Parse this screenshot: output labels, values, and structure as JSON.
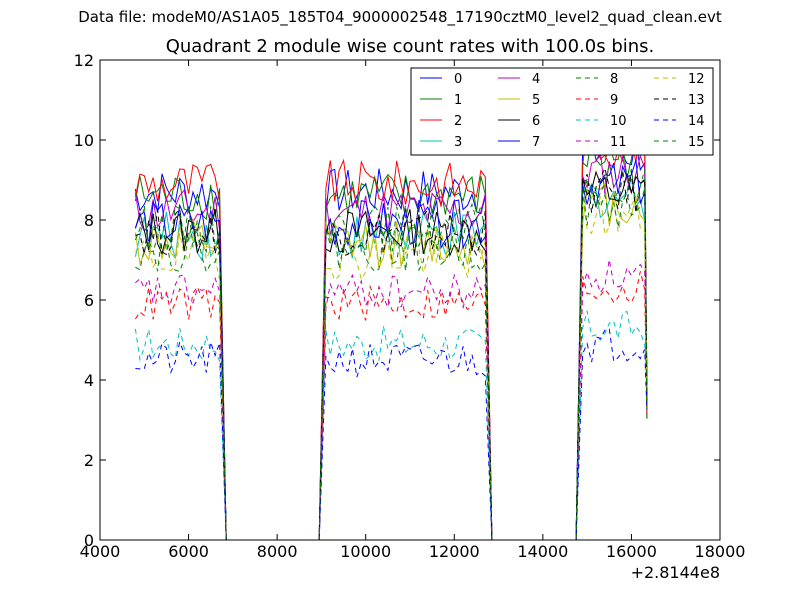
{
  "suptitle": "Data file: modeM0/AS1A05_185T04_9000002548_17190cztM0_level2_quad_clean.evt",
  "chart_data": {
    "type": "line",
    "title": "Quadrant 2 module wise count rates with 100.0s bins.",
    "xlabel": "",
    "ylabel": "",
    "x_offset_label": "+2.8144e8",
    "xlim": [
      4000,
      18000
    ],
    "ylim": [
      0,
      12
    ],
    "xticks": [
      "4000",
      "6000",
      "8000",
      "10000",
      "12000",
      "14000",
      "16000",
      "18000"
    ],
    "yticks": [
      "0",
      "2",
      "4",
      "6",
      "8",
      "10",
      "12"
    ],
    "legend_position": "top-right",
    "legend_columns": 4,
    "bin_seconds": 100,
    "segments": [
      [
        4800,
        6700
      ],
      [
        9100,
        12700
      ],
      [
        14900,
        16300
      ]
    ],
    "series": [
      {
        "name": "0",
        "color": "#0000ff",
        "dash": "solid",
        "level": 8.7
      },
      {
        "name": "1",
        "color": "#008000",
        "dash": "solid",
        "level": 8.6
      },
      {
        "name": "2",
        "color": "#ff0000",
        "dash": "solid",
        "level": 8.9
      },
      {
        "name": "3",
        "color": "#00bfbf",
        "dash": "solid",
        "level": 7.6
      },
      {
        "name": "4",
        "color": "#bf00bf",
        "dash": "solid",
        "level": 8.2
      },
      {
        "name": "5",
        "color": "#bfbf00",
        "dash": "solid",
        "level": 7.4
      },
      {
        "name": "6",
        "color": "#000000",
        "dash": "solid",
        "level": 7.7
      },
      {
        "name": "7",
        "color": "#0000ff",
        "dash": "solid",
        "level": 7.9
      },
      {
        "name": "8",
        "color": "#008000",
        "dash": "dashed",
        "level": 7.8
      },
      {
        "name": "9",
        "color": "#ff0000",
        "dash": "dashed",
        "level": 5.9
      },
      {
        "name": "10",
        "color": "#00bfbf",
        "dash": "dashed",
        "level": 4.9
      },
      {
        "name": "11",
        "color": "#bf00bf",
        "dash": "dashed",
        "level": 6.2
      },
      {
        "name": "12",
        "color": "#bfbf00",
        "dash": "dashed",
        "level": 7.1
      },
      {
        "name": "13",
        "color": "#000000",
        "dash": "dashed",
        "level": 7.7
      },
      {
        "name": "14",
        "color": "#0000ff",
        "dash": "dashed",
        "level": 4.5
      },
      {
        "name": "15",
        "color": "#008000",
        "dash": "dashed",
        "level": 7.3
      }
    ]
  }
}
